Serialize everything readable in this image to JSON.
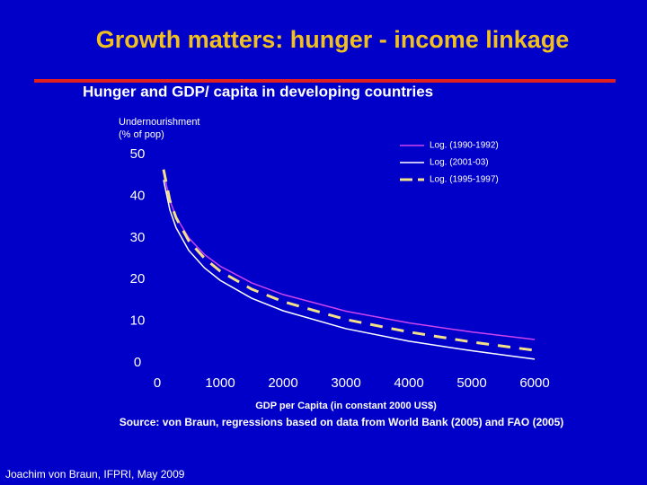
{
  "chart_data": {
    "type": "line",
    "title": "Growth matters: hunger - income linkage",
    "subtitle": "Hunger and GDP/ capita in developing countries",
    "y_label": "Undernourishment (% of pop)",
    "x_label": "GDP per Capita (in constant 2000 US$)",
    "source": "Source: von Braun, regressions based on data from World Bank (2005) and FAO (2005)",
    "footer": "Joachim von Braun, IFPRI, May 2009",
    "x": [
      100,
      200,
      300,
      500,
      750,
      1000,
      1500,
      2000,
      3000,
      4000,
      5000,
      6000
    ],
    "series": [
      {
        "name": "Log. (1990-1992)",
        "color": "#cc44ee",
        "dashed": false,
        "values": [
          45.8,
          39.0,
          35.0,
          30.0,
          26.0,
          23.2,
          19.2,
          16.4,
          12.4,
          9.6,
          7.4,
          5.6
        ]
      },
      {
        "name": "Log. (2001-03)",
        "color": "#ffffff",
        "dashed": false,
        "values": [
          43.9,
          36.7,
          32.4,
          27.0,
          22.8,
          19.8,
          15.5,
          12.5,
          8.2,
          5.2,
          2.9,
          0.9
        ]
      },
      {
        "name": "Log. (1995-1997)",
        "color": "#f5e08a",
        "dashed": true,
        "values": [
          46.4,
          39.0,
          34.8,
          29.3,
          25.1,
          22.0,
          17.7,
          14.7,
          10.4,
          7.4,
          5.0,
          3.0
        ]
      }
    ],
    "xlim": [
      0,
      6000
    ],
    "xticks": [
      0,
      1000,
      2000,
      3000,
      4000,
      5000,
      6000
    ],
    "ylim": [
      0,
      50
    ],
    "yticks": [
      0,
      10,
      20,
      30,
      40,
      50
    ],
    "legend": "top-right"
  }
}
